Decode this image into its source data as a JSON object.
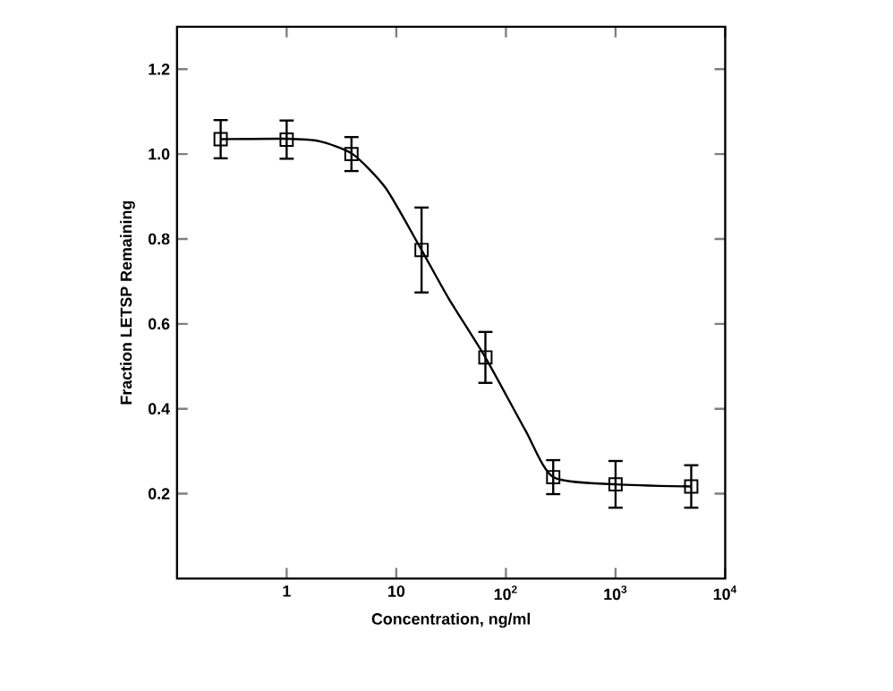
{
  "chart_data": {
    "type": "scatter",
    "xlabel": "Concentration, ng/ml",
    "ylabel": "Fraction LETSP Remaining",
    "log": "x",
    "xlim": [
      0.1,
      10000
    ],
    "ylim": [
      0,
      1.3
    ],
    "xticks": [
      1,
      {
        "value": 10,
        "label": "10"
      },
      {
        "value": 100,
        "label": "10$^{2}$"
      },
      {
        "value": 1000,
        "label": "10$^{3}$"
      },
      {
        "value": 10000,
        "label": "10$^{4}$"
      }
    ],
    "yticks": [
      0.2,
      0.4,
      0.6,
      0.8,
      {
        "value": 1,
        "label": "1.0"
      },
      1.2
    ],
    "series": [
      {
        "marker": "square",
        "color": "#000000",
        "x": [
          0.25,
          1,
          3.9,
          17,
          65,
          270,
          1000,
          4900
        ],
        "values": [
          1.035,
          1.034,
          1.0,
          0.774,
          0.521,
          0.239,
          0.222,
          0.217
        ],
        "errors": [
          0.045,
          0.045,
          0.04,
          0.1,
          0.06,
          0.04,
          0.055,
          0.05
        ]
      },
      {
        "type": "line",
        "marker": "none",
        "color": "#000000",
        "x": [
          0.25,
          1,
          2,
          4,
          8,
          17,
          30,
          65,
          150,
          270,
          1000,
          4900
        ],
        "values": [
          1.035,
          1.036,
          1.03,
          1.0,
          0.92,
          0.774,
          0.66,
          0.521,
          0.35,
          0.239,
          0.222,
          0.217
        ]
      }
    ]
  }
}
